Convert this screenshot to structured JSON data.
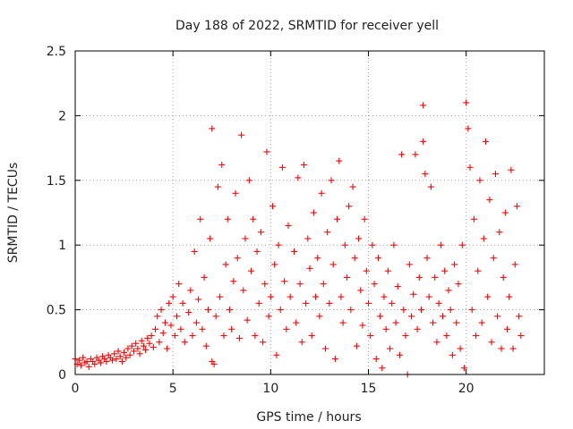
{
  "chart_data": {
    "type": "scatter",
    "title": "Day 188 of 2022, SRMTID for receiver yell",
    "xlabel": "GPS time / hours",
    "ylabel": "SRMTID / TECUs",
    "xlim": [
      0,
      24
    ],
    "ylim": [
      0,
      2.5
    ],
    "x_ticks": [
      0,
      5,
      10,
      15,
      20
    ],
    "x_tick_labels": [
      "0",
      "5",
      "10",
      "15",
      "20"
    ],
    "y_ticks": [
      0,
      0.5,
      1,
      1.5,
      2,
      2.5
    ],
    "y_tick_labels": [
      "0",
      "0.5",
      "1",
      "1.5",
      "2",
      "2.5"
    ],
    "grid": true,
    "marker": "plus",
    "color": "#ff0000",
    "series": [
      {
        "name": "SRMTID",
        "points": [
          [
            0.0,
            0.12
          ],
          [
            0.1,
            0.08
          ],
          [
            0.2,
            0.11
          ],
          [
            0.3,
            0.07
          ],
          [
            0.4,
            0.13
          ],
          [
            0.5,
            0.09
          ],
          [
            0.6,
            0.1
          ],
          [
            0.7,
            0.06
          ],
          [
            0.8,
            0.12
          ],
          [
            0.9,
            0.1
          ],
          [
            1.0,
            0.08
          ],
          [
            1.1,
            0.13
          ],
          [
            1.2,
            0.11
          ],
          [
            1.3,
            0.09
          ],
          [
            1.4,
            0.14
          ],
          [
            1.5,
            0.12
          ],
          [
            1.6,
            0.1
          ],
          [
            1.7,
            0.15
          ],
          [
            1.8,
            0.13
          ],
          [
            1.9,
            0.11
          ],
          [
            2.0,
            0.16
          ],
          [
            2.1,
            0.12
          ],
          [
            2.2,
            0.18
          ],
          [
            2.3,
            0.14
          ],
          [
            2.4,
            0.1
          ],
          [
            2.5,
            0.17
          ],
          [
            2.6,
            0.13
          ],
          [
            2.7,
            0.2
          ],
          [
            2.8,
            0.15
          ],
          [
            2.9,
            0.22
          ],
          [
            3.0,
            0.18
          ],
          [
            3.1,
            0.24
          ],
          [
            3.2,
            0.2
          ],
          [
            3.3,
            0.16
          ],
          [
            3.4,
            0.26
          ],
          [
            3.5,
            0.22
          ],
          [
            3.6,
            0.19
          ],
          [
            3.7,
            0.28
          ],
          [
            3.8,
            0.24
          ],
          [
            3.9,
            0.3
          ],
          [
            4.0,
            0.21
          ],
          [
            4.1,
            0.35
          ],
          [
            4.2,
            0.45
          ],
          [
            4.3,
            0.25
          ],
          [
            4.4,
            0.5
          ],
          [
            4.5,
            0.32
          ],
          [
            4.6,
            0.4
          ],
          [
            4.7,
            0.2
          ],
          [
            4.8,
            0.55
          ],
          [
            4.9,
            0.38
          ],
          [
            5.0,
            0.6
          ],
          [
            5.1,
            0.3
          ],
          [
            5.2,
            0.45
          ],
          [
            5.3,
            0.7
          ],
          [
            5.4,
            0.35
          ],
          [
            5.5,
            0.55
          ],
          [
            5.6,
            0.25
          ],
          [
            5.8,
            0.48
          ],
          [
            5.9,
            0.65
          ],
          [
            6.0,
            0.3
          ],
          [
            6.1,
            0.95
          ],
          [
            6.2,
            0.4
          ],
          [
            6.3,
            0.58
          ],
          [
            6.4,
            1.2
          ],
          [
            6.5,
            0.35
          ],
          [
            6.6,
            0.75
          ],
          [
            6.7,
            0.22
          ],
          [
            6.8,
            0.5
          ],
          [
            6.9,
            1.05
          ],
          [
            7.0,
            0.1
          ],
          [
            7.0,
            1.9
          ],
          [
            7.1,
            0.08
          ],
          [
            7.2,
            0.45
          ],
          [
            7.3,
            1.45
          ],
          [
            7.4,
            0.6
          ],
          [
            7.5,
            1.62
          ],
          [
            7.6,
            0.3
          ],
          [
            7.7,
            0.85
          ],
          [
            7.8,
            1.2
          ],
          [
            7.9,
            0.5
          ],
          [
            8.0,
            0.35
          ],
          [
            8.1,
            0.72
          ],
          [
            8.2,
            1.4
          ],
          [
            8.3,
            0.9
          ],
          [
            8.4,
            0.28
          ],
          [
            8.5,
            1.85
          ],
          [
            8.6,
            0.65
          ],
          [
            8.7,
            1.05
          ],
          [
            8.8,
            0.42
          ],
          [
            8.9,
            1.5
          ],
          [
            9.0,
            0.8
          ],
          [
            9.1,
            1.2
          ],
          [
            9.2,
            0.3
          ],
          [
            9.3,
            0.95
          ],
          [
            9.4,
            0.55
          ],
          [
            9.5,
            1.1
          ],
          [
            9.6,
            0.25
          ],
          [
            9.7,
            0.7
          ],
          [
            9.8,
            1.72
          ],
          [
            9.9,
            0.45
          ],
          [
            10.0,
            0.6
          ],
          [
            10.1,
            1.3
          ],
          [
            10.2,
            0.85
          ],
          [
            10.3,
            0.15
          ],
          [
            10.4,
            1.0
          ],
          [
            10.5,
            0.5
          ],
          [
            10.6,
            1.6
          ],
          [
            10.7,
            0.72
          ],
          [
            10.8,
            0.35
          ],
          [
            10.9,
            1.15
          ],
          [
            11.0,
            0.6
          ],
          [
            11.2,
            0.95
          ],
          [
            11.3,
            0.4
          ],
          [
            11.4,
            1.52
          ],
          [
            11.5,
            0.7
          ],
          [
            11.6,
            0.25
          ],
          [
            11.7,
            1.62
          ],
          [
            11.8,
            0.55
          ],
          [
            11.9,
            1.05
          ],
          [
            12.0,
            0.82
          ],
          [
            12.1,
            0.3
          ],
          [
            12.2,
            1.25
          ],
          [
            12.3,
            0.6
          ],
          [
            12.4,
            0.9
          ],
          [
            12.5,
            0.45
          ],
          [
            12.6,
            1.4
          ],
          [
            12.7,
            0.7
          ],
          [
            12.8,
            0.2
          ],
          [
            12.9,
            1.1
          ],
          [
            13.0,
            0.55
          ],
          [
            13.1,
            1.5
          ],
          [
            13.2,
            0.85
          ],
          [
            13.3,
            0.12
          ],
          [
            13.4,
            1.2
          ],
          [
            13.5,
            1.65
          ],
          [
            13.6,
            0.6
          ],
          [
            13.7,
            0.4
          ],
          [
            13.8,
            1.0
          ],
          [
            13.9,
            0.75
          ],
          [
            14.0,
            1.3
          ],
          [
            14.1,
            0.5
          ],
          [
            14.2,
            1.45
          ],
          [
            14.3,
            0.9
          ],
          [
            14.4,
            0.22
          ],
          [
            14.5,
            1.05
          ],
          [
            14.6,
            0.65
          ],
          [
            14.7,
            0.38
          ],
          [
            14.8,
            1.2
          ],
          [
            14.9,
            0.8
          ],
          [
            15.0,
            0.55
          ],
          [
            15.1,
            0.3
          ],
          [
            15.2,
            1.0
          ],
          [
            15.3,
            0.7
          ],
          [
            15.4,
            0.12
          ],
          [
            15.5,
            0.9
          ],
          [
            15.6,
            0.45
          ],
          [
            15.7,
            0.05
          ],
          [
            15.8,
            0.6
          ],
          [
            15.9,
            0.35
          ],
          [
            16.0,
            0.8
          ],
          [
            16.1,
            0.2
          ],
          [
            16.2,
            0.55
          ],
          [
            16.3,
            1.0
          ],
          [
            16.4,
            0.4
          ],
          [
            16.5,
            0.68
          ],
          [
            16.6,
            0.15
          ],
          [
            16.7,
            1.7
          ],
          [
            16.8,
            0.5
          ],
          [
            16.9,
            0.3
          ],
          [
            17.0,
            0.0
          ],
          [
            17.1,
            0.85
          ],
          [
            17.2,
            0.45
          ],
          [
            17.3,
            0.62
          ],
          [
            17.4,
            1.7
          ],
          [
            17.5,
            0.35
          ],
          [
            17.6,
            0.75
          ],
          [
            17.7,
            0.5
          ],
          [
            17.8,
            2.08
          ],
          [
            17.8,
            1.8
          ],
          [
            17.9,
            1.55
          ],
          [
            18.0,
            0.9
          ],
          [
            18.1,
            0.6
          ],
          [
            18.2,
            1.45
          ],
          [
            18.3,
            0.4
          ],
          [
            18.4,
            0.75
          ],
          [
            18.5,
            0.25
          ],
          [
            18.6,
            0.55
          ],
          [
            18.7,
            1.0
          ],
          [
            18.8,
            0.45
          ],
          [
            18.9,
            0.8
          ],
          [
            19.0,
            0.3
          ],
          [
            19.1,
            0.65
          ],
          [
            19.2,
            0.5
          ],
          [
            19.3,
            0.15
          ],
          [
            19.4,
            0.85
          ],
          [
            19.5,
            0.4
          ],
          [
            19.6,
            0.7
          ],
          [
            19.7,
            0.2
          ],
          [
            19.8,
            1.0
          ],
          [
            19.9,
            0.05
          ],
          [
            20.0,
            2.1
          ],
          [
            20.1,
            1.9
          ],
          [
            20.2,
            1.6
          ],
          [
            20.3,
            0.5
          ],
          [
            20.4,
            1.2
          ],
          [
            20.5,
            0.3
          ],
          [
            20.6,
            0.8
          ],
          [
            20.7,
            1.5
          ],
          [
            20.8,
            0.4
          ],
          [
            20.9,
            1.05
          ],
          [
            21.0,
            1.8
          ],
          [
            21.1,
            0.6
          ],
          [
            21.2,
            1.35
          ],
          [
            21.3,
            0.25
          ],
          [
            21.4,
            0.9
          ],
          [
            21.5,
            1.55
          ],
          [
            21.6,
            0.45
          ],
          [
            21.7,
            1.1
          ],
          [
            21.8,
            0.2
          ],
          [
            21.9,
            0.75
          ],
          [
            22.0,
            1.25
          ],
          [
            22.1,
            0.35
          ],
          [
            22.2,
            0.6
          ],
          [
            22.3,
            1.58
          ],
          [
            22.4,
            0.2
          ],
          [
            22.5,
            0.85
          ],
          [
            22.6,
            1.3
          ],
          [
            22.7,
            0.45
          ],
          [
            22.8,
            0.3
          ]
        ]
      }
    ]
  }
}
